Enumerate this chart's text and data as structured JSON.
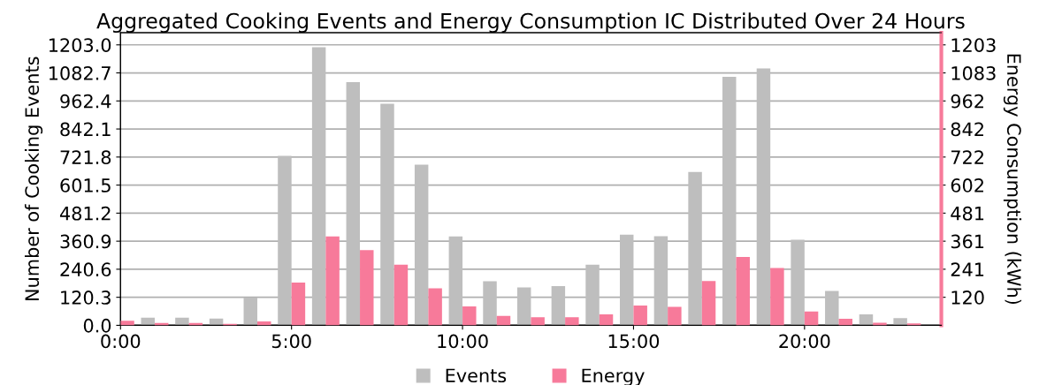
{
  "chart_data": {
    "type": "bar",
    "title": "Aggregated Cooking Events and Energy Consumption IC Distributed Over 24 Hours",
    "ylabel": "Number of Cooking Events",
    "y2label": "Energy Consumption (kWh)",
    "x": [
      0,
      1,
      2,
      3,
      4,
      5,
      6,
      7,
      8,
      9,
      10,
      11,
      12,
      13,
      14,
      15,
      16,
      17,
      18,
      19,
      20,
      21,
      22,
      23
    ],
    "series": [
      {
        "name": "Events",
        "color": "#bebebe",
        "values": [
          null,
          33,
          33,
          29,
          119,
          727,
          1193,
          1043,
          950,
          689,
          381,
          189,
          163,
          168,
          260,
          389,
          382,
          658,
          1066,
          1102,
          367,
          147,
          47,
          31
        ]
      },
      {
        "name": "Energy",
        "color": "#f77a9a",
        "axis": "y2",
        "values": [
          20,
          10,
          10,
          6,
          17,
          183,
          381,
          323,
          260,
          159,
          81,
          40,
          35,
          35,
          47,
          85,
          79,
          190,
          293,
          246,
          59,
          28,
          11,
          8
        ]
      }
    ],
    "xlim": [
      0,
      24
    ],
    "xticks": [
      {
        "value": 0,
        "label": "0:00"
      },
      {
        "value": 5,
        "label": "5:00"
      },
      {
        "value": 10,
        "label": "10:00"
      },
      {
        "value": 15,
        "label": "15:00"
      },
      {
        "value": 20,
        "label": "20:00"
      }
    ],
    "ylim": [
      0,
      1255
    ],
    "yticks": [
      {
        "value": 0,
        "label": "0.0"
      },
      120.3,
      240.6,
      360.9,
      481.2,
      601.5,
      721.8,
      842.1,
      962.4,
      1082.7,
      {
        "value": 1203,
        "label": "1203.0"
      }
    ],
    "y2lim": [
      0,
      1255
    ],
    "y2ticks": [
      {
        "value": 120.3,
        "label": "120"
      },
      {
        "value": 240.6,
        "label": "241"
      },
      {
        "value": 360.9,
        "label": "361"
      },
      {
        "value": 481.2,
        "label": "481"
      },
      {
        "value": 601.5,
        "label": "602"
      },
      {
        "value": 721.8,
        "label": "722"
      },
      {
        "value": 842.1,
        "label": "842"
      },
      {
        "value": 962.4,
        "label": "962"
      },
      {
        "value": 1082.7,
        "label": "1083"
      },
      1203
    ],
    "grid": "y",
    "legend": "bottom"
  }
}
